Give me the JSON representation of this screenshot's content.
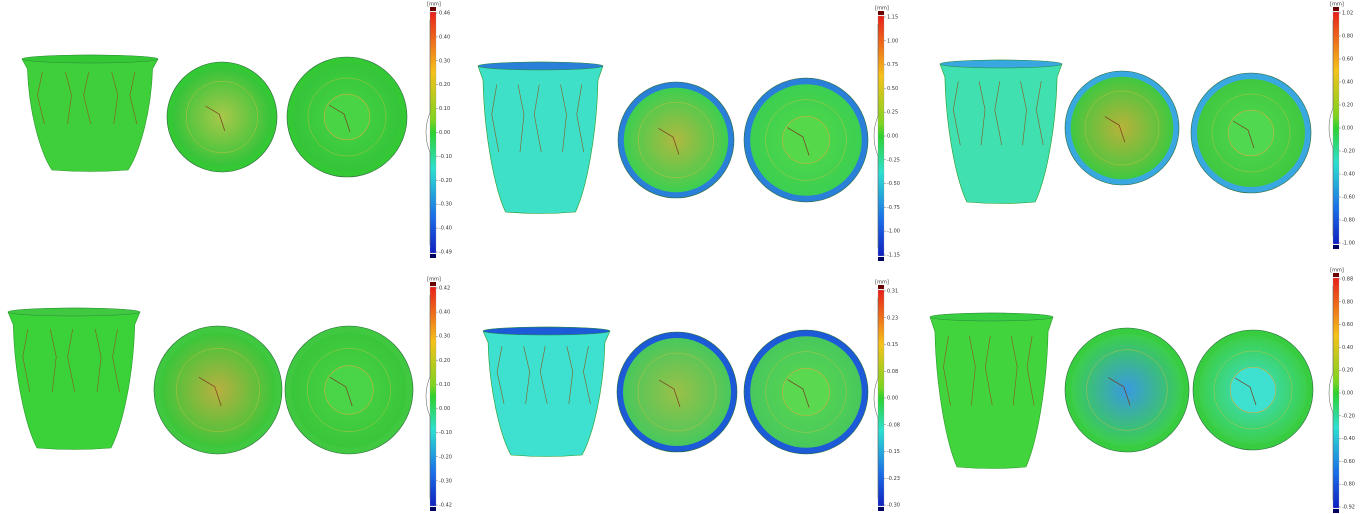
{
  "panels": [
    {
      "unit": "[mm]",
      "scale_ticks": [
        "0.46",
        "0.40",
        "0.30",
        "0.20",
        "0.10",
        "0.00",
        "-0.10",
        "-0.20",
        "-0.30",
        "-0.40",
        "-0.49"
      ]
    },
    {
      "unit": "[mm]",
      "scale_ticks": [
        "1.15",
        "1.00",
        "0.75",
        "0.50",
        "0.25",
        "0.00",
        "-0.25",
        "-0.50",
        "-0.75",
        "-1.00",
        "-1.15"
      ]
    },
    {
      "unit": "[mm]",
      "scale_ticks": [
        "1.02",
        "0.80",
        "0.60",
        "0.40",
        "0.20",
        "0.00",
        "-0.20",
        "-0.40",
        "-0.60",
        "-0.80",
        "-1.00"
      ]
    },
    {
      "unit": "[mm]",
      "scale_ticks": [
        "0.42",
        "0.40",
        "0.30",
        "0.20",
        "0.10",
        "0.00",
        "-0.10",
        "-0.20",
        "-0.30",
        "-0.42"
      ]
    },
    {
      "unit": "[mm]",
      "scale_ticks": [
        "0.31",
        "0.23",
        "0.15",
        "0.08",
        "0.00",
        "-0.08",
        "-0.15",
        "-0.23",
        "-0.30"
      ]
    },
    {
      "unit": "[mm]",
      "scale_ticks": [
        "0.88",
        "0.80",
        "0.60",
        "0.40",
        "0.20",
        "0.00",
        "-0.20",
        "-0.40",
        "-0.60",
        "-0.80",
        "-0.92"
      ]
    }
  ]
}
